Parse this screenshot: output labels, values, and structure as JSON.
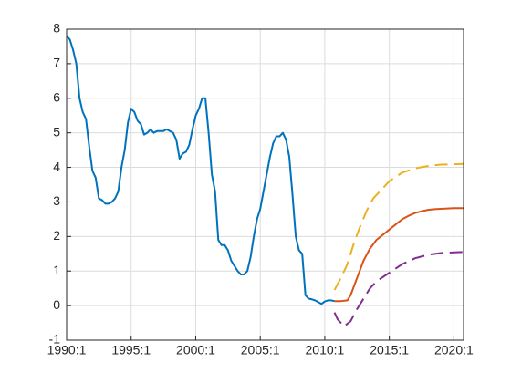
{
  "chart_data": {
    "type": "line",
    "xlim": [
      1990,
      2020.75
    ],
    "ylim": [
      -1,
      8
    ],
    "xticks": [
      {
        "value": 1990,
        "label": "1990:1"
      },
      {
        "value": 1995,
        "label": "1995:1"
      },
      {
        "value": 2000,
        "label": "2000:1"
      },
      {
        "value": 2005,
        "label": "2005:1"
      },
      {
        "value": 2010,
        "label": "2010:1"
      },
      {
        "value": 2015,
        "label": "2015:1"
      },
      {
        "value": 2020,
        "label": "2020:1"
      }
    ],
    "yticks": [
      -1,
      0,
      1,
      2,
      3,
      4,
      5,
      6,
      7,
      8
    ],
    "grid": true,
    "series": [
      {
        "color": "#0072bd",
        "dash": false,
        "x": [
          1990.0,
          1990.25,
          1990.5,
          1990.75,
          1991.0,
          1991.25,
          1991.5,
          1991.75,
          1992.0,
          1992.25,
          1992.5,
          1992.75,
          1993.0,
          1993.25,
          1993.5,
          1993.75,
          1994.0,
          1994.25,
          1994.5,
          1994.75,
          1995.0,
          1995.25,
          1995.5,
          1995.75,
          1996.0,
          1996.25,
          1996.5,
          1996.75,
          1997.0,
          1997.25,
          1997.5,
          1997.75,
          1998.0,
          1998.25,
          1998.5,
          1998.75,
          1999.0,
          1999.25,
          1999.5,
          1999.75,
          2000.0,
          2000.25,
          2000.5,
          2000.75,
          2001.0,
          2001.25,
          2001.5,
          2001.75,
          2002.0,
          2002.25,
          2002.5,
          2002.75,
          2003.0,
          2003.25,
          2003.5,
          2003.75,
          2004.0,
          2004.25,
          2004.5,
          2004.75,
          2005.0,
          2005.25,
          2005.5,
          2005.75,
          2006.0,
          2006.25,
          2006.5,
          2006.75,
          2007.0,
          2007.25,
          2007.5,
          2007.75,
          2008.0,
          2008.25,
          2008.5,
          2008.75,
          2009.0,
          2009.25,
          2009.5,
          2009.75,
          2010.0,
          2010.25,
          2010.5,
          2010.75
        ],
        "values": [
          7.8,
          7.7,
          7.4,
          7.0,
          6.0,
          5.6,
          5.4,
          4.6,
          3.9,
          3.7,
          3.1,
          3.05,
          2.95,
          2.95,
          3.0,
          3.1,
          3.3,
          4.0,
          4.5,
          5.3,
          5.7,
          5.6,
          5.35,
          5.25,
          4.95,
          5.0,
          5.1,
          5.0,
          5.05,
          5.05,
          5.05,
          5.1,
          5.05,
          5.0,
          4.8,
          4.25,
          4.4,
          4.45,
          4.65,
          5.1,
          5.5,
          5.7,
          6.0,
          6.0,
          5.0,
          3.8,
          3.3,
          1.9,
          1.75,
          1.75,
          1.6,
          1.3,
          1.15,
          1.0,
          0.9,
          0.9,
          1.0,
          1.4,
          2.0,
          2.5,
          2.8,
          3.3,
          3.8,
          4.3,
          4.7,
          4.9,
          4.9,
          5.0,
          4.8,
          4.3,
          3.2,
          2.0,
          1.6,
          1.5,
          0.3,
          0.2,
          0.18,
          0.15,
          0.1,
          0.05,
          0.12,
          0.15,
          0.15,
          0.13
        ]
      },
      {
        "color": "#d95319",
        "dash": false,
        "x": [
          2010.75,
          2011.25,
          2011.75,
          2012.0,
          2012.5,
          2013.0,
          2013.5,
          2014.0,
          2014.5,
          2015.0,
          2015.5,
          2016.0,
          2016.5,
          2017.0,
          2017.5,
          2018.0,
          2018.5,
          2019.0,
          2019.5,
          2020.0,
          2020.75
        ],
        "values": [
          0.13,
          0.13,
          0.15,
          0.3,
          0.8,
          1.3,
          1.65,
          1.9,
          2.05,
          2.2,
          2.35,
          2.5,
          2.6,
          2.68,
          2.73,
          2.77,
          2.79,
          2.8,
          2.81,
          2.82,
          2.82
        ]
      },
      {
        "color": "#edb120",
        "dash": true,
        "x": [
          2010.75,
          2011.25,
          2011.75,
          2012.25,
          2012.75,
          2013.25,
          2013.75,
          2014.5,
          2015.0,
          2016.0,
          2017.0,
          2018.0,
          2019.0,
          2020.0,
          2020.75
        ],
        "values": [
          0.45,
          0.8,
          1.2,
          1.8,
          2.3,
          2.75,
          3.1,
          3.4,
          3.6,
          3.85,
          3.97,
          4.04,
          4.08,
          4.09,
          4.1
        ]
      },
      {
        "color": "#7e2f8e",
        "dash": true,
        "x": [
          2010.75,
          2011.0,
          2011.5,
          2012.0,
          2012.5,
          2013.0,
          2013.5,
          2014.0,
          2015.0,
          2016.0,
          2017.0,
          2018.0,
          2019.0,
          2020.0,
          2020.75
        ],
        "values": [
          -0.2,
          -0.4,
          -0.6,
          -0.45,
          -0.1,
          0.2,
          0.5,
          0.7,
          0.95,
          1.2,
          1.37,
          1.47,
          1.52,
          1.54,
          1.55
        ]
      }
    ]
  }
}
